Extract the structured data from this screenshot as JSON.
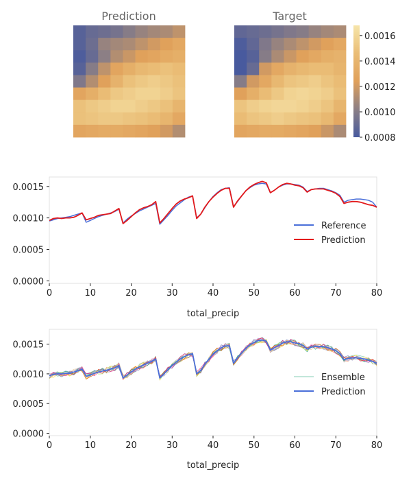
{
  "figure": {
    "colorbar": {
      "ticks": [
        "0.0016",
        "0.0014",
        "0.0012",
        "0.0010",
        "0.0008"
      ],
      "tick_values": [
        0.0016,
        0.0014,
        0.0012,
        0.001,
        0.0008
      ],
      "range": [
        0.0008,
        0.00168
      ]
    }
  },
  "chart_data": [
    {
      "type": "heatmap",
      "title": "Prediction",
      "rows": 9,
      "cols": 9,
      "values": [
        [
          0.00085,
          0.0009,
          0.00092,
          0.00095,
          0.001,
          0.00105,
          0.00108,
          0.0011,
          0.00115
        ],
        [
          0.00085,
          0.00092,
          0.00105,
          0.00108,
          0.0011,
          0.00115,
          0.0012,
          0.00125,
          0.0013
        ],
        [
          0.00082,
          0.0009,
          0.00102,
          0.00112,
          0.00118,
          0.00125,
          0.00128,
          0.00132,
          0.00135
        ],
        [
          0.00085,
          0.001,
          0.00115,
          0.00128,
          0.00135,
          0.00142,
          0.00145,
          0.00148,
          0.00145
        ],
        [
          0.00098,
          0.00112,
          0.00125,
          0.00138,
          0.00148,
          0.00152,
          0.00155,
          0.00152,
          0.00148
        ],
        [
          0.00128,
          0.00135,
          0.00145,
          0.00152,
          0.00155,
          0.00158,
          0.00158,
          0.00155,
          0.0015
        ],
        [
          0.00148,
          0.00152,
          0.00155,
          0.00158,
          0.00158,
          0.00155,
          0.00152,
          0.00148,
          0.0014
        ],
        [
          0.00148,
          0.0015,
          0.00152,
          0.00152,
          0.0015,
          0.00148,
          0.00145,
          0.0014,
          0.0013
        ],
        [
          0.00128,
          0.0013,
          0.00132,
          0.00132,
          0.0013,
          0.00128,
          0.00125,
          0.0012,
          0.00112
        ]
      ]
    },
    {
      "type": "heatmap",
      "title": "Target",
      "rows": 9,
      "cols": 9,
      "values": [
        [
          0.00088,
          0.0009,
          0.00092,
          0.00095,
          0.00098,
          0.001,
          0.00105,
          0.00108,
          0.0011
        ],
        [
          0.00082,
          0.00088,
          0.00098,
          0.00105,
          0.0011,
          0.00115,
          0.0012,
          0.00125,
          0.0013
        ],
        [
          0.0008,
          0.00085,
          0.001,
          0.0011,
          0.00118,
          0.00125,
          0.0013,
          0.00135,
          0.00138
        ],
        [
          0.0008,
          0.0009,
          0.0012,
          0.0013,
          0.00138,
          0.00142,
          0.00145,
          0.00145,
          0.0014
        ],
        [
          0.001,
          0.0012,
          0.0013,
          0.00142,
          0.0015,
          0.00152,
          0.00155,
          0.0015,
          0.00145
        ],
        [
          0.00125,
          0.00135,
          0.00145,
          0.00152,
          0.00158,
          0.0016,
          0.00158,
          0.00155,
          0.00148
        ],
        [
          0.0015,
          0.00155,
          0.00158,
          0.0016,
          0.0016,
          0.00158,
          0.00155,
          0.0015,
          0.0014
        ],
        [
          0.00145,
          0.0015,
          0.00152,
          0.00155,
          0.00152,
          0.0015,
          0.00148,
          0.00142,
          0.0013
        ],
        [
          0.00128,
          0.0013,
          0.00132,
          0.00132,
          0.0013,
          0.00128,
          0.00125,
          0.00118,
          0.0011
        ]
      ]
    },
    {
      "type": "line",
      "xlabel": "total_precip",
      "ylabel": "",
      "xlim": [
        0,
        80
      ],
      "ylim": [
        -4e-05,
        0.00165
      ],
      "xticks": [
        "0",
        "10",
        "20",
        "30",
        "40",
        "50",
        "60",
        "70",
        "80"
      ],
      "yticks": [
        "0.0000",
        "0.0005",
        "0.0010",
        "0.0015"
      ],
      "legend_position": "right",
      "series": [
        {
          "name": "Reference",
          "color": "#4a6fd9",
          "x": [
            0,
            1,
            2,
            3,
            4,
            5,
            6,
            7,
            8,
            9,
            10,
            11,
            12,
            13,
            14,
            15,
            16,
            17,
            18,
            19,
            20,
            21,
            22,
            23,
            24,
            25,
            26,
            27,
            28,
            29,
            30,
            31,
            32,
            33,
            34,
            35,
            36,
            37,
            38,
            39,
            40,
            41,
            42,
            43,
            44,
            45,
            46,
            47,
            48,
            49,
            50,
            51,
            52,
            53,
            54,
            55,
            56,
            57,
            58,
            59,
            60,
            61,
            62,
            63,
            64,
            65,
            66,
            67,
            68,
            69,
            70,
            71,
            72,
            73,
            74,
            75,
            76,
            77,
            78,
            79,
            80
          ],
          "values": [
            0.00095,
            0.00097,
            0.00099,
            0.001,
            0.00101,
            0.00102,
            0.00104,
            0.00106,
            0.00108,
            0.00093,
            0.00096,
            0.00099,
            0.00102,
            0.00104,
            0.00106,
            0.00108,
            0.0011,
            0.00114,
            0.00092,
            0.00098,
            0.00103,
            0.00107,
            0.00111,
            0.00114,
            0.00117,
            0.0012,
            0.00123,
            0.0009,
            0.00097,
            0.00104,
            0.00112,
            0.00119,
            0.00124,
            0.00129,
            0.00133,
            0.00135,
            0.001,
            0.00106,
            0.00116,
            0.00126,
            0.00134,
            0.0014,
            0.00145,
            0.00147,
            0.00148,
            0.00118,
            0.00126,
            0.00135,
            0.00143,
            0.00148,
            0.00152,
            0.00154,
            0.00155,
            0.00154,
            0.0014,
            0.00144,
            0.00149,
            0.00152,
            0.00154,
            0.00154,
            0.00153,
            0.00152,
            0.00149,
            0.00142,
            0.00145,
            0.00146,
            0.00147,
            0.00147,
            0.00145,
            0.00143,
            0.0014,
            0.00136,
            0.00125,
            0.00128,
            0.00129,
            0.0013,
            0.0013,
            0.00129,
            0.00128,
            0.00125,
            0.00117
          ]
        },
        {
          "name": "Prediction",
          "color": "#e31a1c",
          "x": [
            0,
            1,
            2,
            3,
            4,
            5,
            6,
            7,
            8,
            9,
            10,
            11,
            12,
            13,
            14,
            15,
            16,
            17,
            18,
            19,
            20,
            21,
            22,
            23,
            24,
            25,
            26,
            27,
            28,
            29,
            30,
            31,
            32,
            33,
            34,
            35,
            36,
            37,
            38,
            39,
            40,
            41,
            42,
            43,
            44,
            45,
            46,
            47,
            48,
            49,
            50,
            51,
            52,
            53,
            54,
            55,
            56,
            57,
            58,
            59,
            60,
            61,
            62,
            63,
            64,
            65,
            66,
            67,
            68,
            69,
            70,
            71,
            72,
            73,
            74,
            75,
            76,
            77,
            78,
            79,
            80
          ],
          "values": [
            0.00096,
            0.00099,
            0.001,
            0.00099,
            0.001,
            0.001,
            0.00101,
            0.00104,
            0.00108,
            0.00097,
            0.00099,
            0.00101,
            0.00104,
            0.00105,
            0.00106,
            0.00107,
            0.00111,
            0.00115,
            0.00091,
            0.00096,
            0.00102,
            0.00108,
            0.00113,
            0.00116,
            0.00118,
            0.00121,
            0.00126,
            0.00092,
            0.00099,
            0.00107,
            0.00115,
            0.00122,
            0.00127,
            0.0013,
            0.00132,
            0.00135,
            0.00099,
            0.00106,
            0.00117,
            0.00126,
            0.00133,
            0.00139,
            0.00144,
            0.00147,
            0.00147,
            0.00117,
            0.00127,
            0.00135,
            0.00143,
            0.00149,
            0.00153,
            0.00156,
            0.00158,
            0.00156,
            0.0014,
            0.00144,
            0.00149,
            0.00153,
            0.00155,
            0.00154,
            0.00152,
            0.00151,
            0.00148,
            0.00141,
            0.00145,
            0.00146,
            0.00146,
            0.00146,
            0.00144,
            0.00142,
            0.00139,
            0.00134,
            0.00123,
            0.00125,
            0.00126,
            0.00126,
            0.00125,
            0.00123,
            0.00121,
            0.0012,
            0.00117
          ]
        }
      ]
    },
    {
      "type": "line",
      "xlabel": "total_precip",
      "ylabel": "",
      "xlim": [
        0,
        80
      ],
      "ylim": [
        -4e-05,
        0.00175
      ],
      "xticks": [
        "0",
        "10",
        "20",
        "30",
        "40",
        "50",
        "60",
        "70",
        "80"
      ],
      "yticks": [
        "0.0000",
        "0.0005",
        "0.0010",
        "0.0015"
      ],
      "legend_position": "right",
      "ensemble_members": 12,
      "ensemble_spread": 5e-05,
      "ensemble_colors": [
        "#66c2a5",
        "#fc8d62",
        "#8da0cb",
        "#e78ac3",
        "#a6d854",
        "#ffd92f",
        "#e5c494",
        "#b3b3b3",
        "#1b9e77",
        "#d95f02",
        "#7570b3",
        "#e7298a"
      ],
      "series": [
        {
          "name": "Ensemble",
          "color": "#66c2a5"
        },
        {
          "name": "Prediction",
          "color": "#4a6fd9",
          "x": [
            0,
            1,
            2,
            3,
            4,
            5,
            6,
            7,
            8,
            9,
            10,
            11,
            12,
            13,
            14,
            15,
            16,
            17,
            18,
            19,
            20,
            21,
            22,
            23,
            24,
            25,
            26,
            27,
            28,
            29,
            30,
            31,
            32,
            33,
            34,
            35,
            36,
            37,
            38,
            39,
            40,
            41,
            42,
            43,
            44,
            45,
            46,
            47,
            48,
            49,
            50,
            51,
            52,
            53,
            54,
            55,
            56,
            57,
            58,
            59,
            60,
            61,
            62,
            63,
            64,
            65,
            66,
            67,
            68,
            69,
            70,
            71,
            72,
            73,
            74,
            75,
            76,
            77,
            78,
            79,
            80
          ],
          "values": [
            0.00097,
            0.00099,
            0.001,
            0.001,
            0.00101,
            0.00101,
            0.00103,
            0.00105,
            0.00108,
            0.00096,
            0.00098,
            0.00101,
            0.00103,
            0.00105,
            0.00106,
            0.00108,
            0.0011,
            0.00114,
            0.00093,
            0.00098,
            0.00103,
            0.00108,
            0.00112,
            0.00115,
            0.00118,
            0.00121,
            0.00125,
            0.00093,
            0.001,
            0.00107,
            0.00114,
            0.0012,
            0.00125,
            0.00129,
            0.00132,
            0.00134,
            0.001,
            0.00106,
            0.00116,
            0.00125,
            0.00133,
            0.00139,
            0.00144,
            0.00147,
            0.00147,
            0.00118,
            0.00127,
            0.00135,
            0.00143,
            0.00149,
            0.00153,
            0.00156,
            0.00157,
            0.00155,
            0.0014,
            0.00144,
            0.00148,
            0.00152,
            0.00154,
            0.00154,
            0.00152,
            0.00151,
            0.00148,
            0.00142,
            0.00145,
            0.00146,
            0.00146,
            0.00146,
            0.00144,
            0.00142,
            0.00139,
            0.00134,
            0.00124,
            0.00126,
            0.00127,
            0.00127,
            0.00126,
            0.00125,
            0.00123,
            0.00121,
            0.00118
          ]
        }
      ]
    }
  ]
}
